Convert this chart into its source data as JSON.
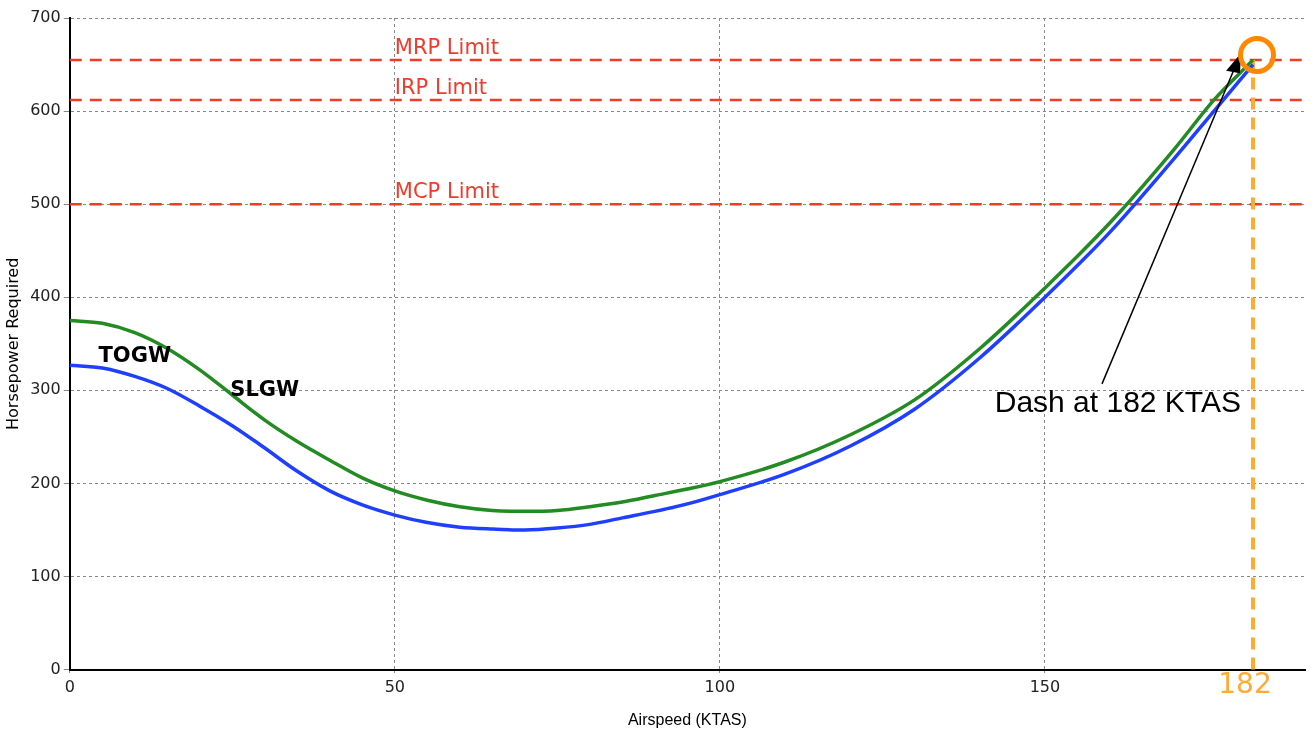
{
  "chart_data": {
    "type": "line",
    "xlabel": "Airspeed (KTAS)",
    "ylabel": "Horsepower Required",
    "xlim": [
      0,
      190
    ],
    "xticks": [
      0,
      50,
      100,
      150
    ],
    "ylim": [
      0,
      700
    ],
    "yticks": [
      0,
      100,
      200,
      300,
      400,
      500,
      600,
      700
    ],
    "grid": true,
    "legend": false,
    "marker": "none",
    "line_style": "solid",
    "series": [
      {
        "name": "SLGW",
        "color": "#228b22",
        "x": [
          0,
          5,
          10,
          15,
          20,
          25,
          30,
          35,
          40,
          45,
          50,
          55,
          60,
          65,
          70,
          75,
          80,
          85,
          90,
          95,
          100,
          110,
          120,
          130,
          140,
          150,
          160,
          170,
          176,
          182
        ],
        "values": [
          375,
          372,
          362,
          345,
          322,
          295,
          268,
          245,
          225,
          206,
          192,
          182,
          175,
          171,
          170,
          171,
          175,
          180,
          187,
          194,
          202,
          223,
          252,
          290,
          345,
          410,
          480,
          560,
          612,
          655
        ]
      },
      {
        "name": "TOGW",
        "color": "#1f3fff",
        "x": [
          0,
          5,
          10,
          15,
          20,
          25,
          30,
          35,
          40,
          45,
          50,
          55,
          60,
          65,
          70,
          75,
          80,
          85,
          90,
          95,
          100,
          110,
          120,
          130,
          140,
          150,
          160,
          170,
          176,
          182
        ],
        "values": [
          327,
          324,
          315,
          302,
          283,
          262,
          238,
          213,
          192,
          177,
          166,
          158,
          153,
          151,
          150,
          152,
          156,
          163,
          170,
          178,
          188,
          210,
          240,
          280,
          335,
          400,
          470,
          550,
          600,
          650
        ]
      }
    ],
    "ref_lines": [
      {
        "axis": "y",
        "value": 655,
        "label": "MRP Limit",
        "color": "#f03a2a",
        "line_style": "dashed"
      },
      {
        "axis": "y",
        "value": 612,
        "label": "IRP Limit",
        "color": "#f03a2a",
        "line_style": "dashed"
      },
      {
        "axis": "y",
        "value": 500,
        "label": "MCP Limit",
        "color": "#f03a2a",
        "line_style": "dashed"
      },
      {
        "axis": "x",
        "value": 182,
        "label": "182",
        "color": "#ffaa33",
        "line_style": "dashed"
      }
    ],
    "annotations": [
      {
        "text": "Dash at 182 KTAS",
        "x": 180,
        "y": 659
      }
    ]
  }
}
